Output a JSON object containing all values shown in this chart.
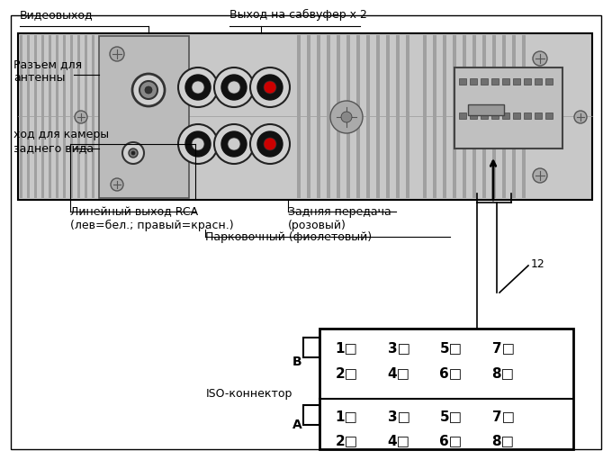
{
  "bg_color": "#ffffff",
  "label_videovyhod": "Видеовыход",
  "label_vyhod_sub": "Выход на сабвуфер х 2",
  "label_razem": "Разъем для\nантенны",
  "label_kamera": "ход для камеры\nзаднего вида",
  "label_linear": "Линейный выход RCA\n(лев=бел.; правый=красн.)",
  "label_zadnya": "Задняя передача\n(розовый)",
  "label_parkov": "Парковочный (фиолетовый)",
  "label_12": "12",
  "label_B": "B",
  "label_A": "A",
  "label_iso": "ISO-коннектор",
  "top_row_B": [
    "1□",
    "3□",
    "5□",
    "7□"
  ],
  "bot_row_B": [
    "2□",
    "4□",
    "6□",
    "8□"
  ],
  "top_row_A": [
    "1□",
    "3□",
    "5□",
    "7□"
  ],
  "bot_row_A": [
    "2□",
    "4□",
    "6□",
    "8□"
  ],
  "rca_red_color": "#cc0000",
  "chassis_color": "#c8c8c8"
}
